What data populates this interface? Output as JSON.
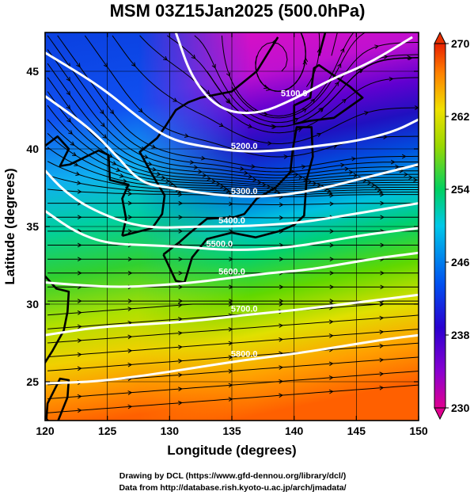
{
  "chart_data": {
    "type": "heatmap",
    "title": "MSM 03Z15Jan2025 (500.0hPa)",
    "xlabel": "Longitude (degrees)",
    "ylabel": "Latitude  (degrees)",
    "xlim": [
      120,
      150
    ],
    "ylim": [
      22.5,
      47.5
    ],
    "xticks": [
      "120",
      "125",
      "130",
      "135",
      "140",
      "145",
      "150"
    ],
    "yticks": [
      "25",
      "30",
      "35",
      "40",
      "45"
    ],
    "colorbar": {
      "min": 230,
      "max": 270,
      "ticks": [
        "230",
        "238",
        "246",
        "254",
        "262",
        "270"
      ],
      "stops": [
        "#e00090",
        "#8a00d0",
        "#2a00d0",
        "#0050f0",
        "#00c8e8",
        "#00d060",
        "#9ad800",
        "#f0e000",
        "#ff8000",
        "#e82000"
      ]
    },
    "height_contours": [
      {
        "label": "5100.0",
        "points": [
          [
            130.5,
            47.5
          ],
          [
            131.8,
            44.5
          ],
          [
            134,
            42.5
          ],
          [
            137,
            42.2
          ],
          [
            140,
            43.2
          ],
          [
            143,
            44.5
          ],
          [
            146,
            45.5
          ],
          [
            149.5,
            47.2
          ]
        ]
      },
      {
        "label": "5200.0",
        "points": [
          [
            120,
            46.2
          ],
          [
            124.5,
            44
          ],
          [
            127.5,
            42
          ],
          [
            130,
            40.6
          ],
          [
            133,
            40.1
          ],
          [
            136,
            39.8
          ],
          [
            139,
            39.9
          ],
          [
            142,
            40.2
          ],
          [
            145,
            40.5
          ],
          [
            148,
            41.1
          ],
          [
            150,
            41.9
          ]
        ]
      },
      {
        "label": "5300.0",
        "points": [
          [
            120,
            43.4
          ],
          [
            123.5,
            41.4
          ],
          [
            125.8,
            39.5
          ],
          [
            127.7,
            37.8
          ],
          [
            130,
            37.5
          ],
          [
            133,
            37.1
          ],
          [
            136,
            36.9
          ],
          [
            139,
            37.0
          ],
          [
            142,
            37.4
          ],
          [
            145,
            38.0
          ],
          [
            148,
            38.6
          ],
          [
            150,
            39.0
          ]
        ]
      },
      {
        "label": "5400.0",
        "points": [
          [
            120,
            38.6
          ],
          [
            121.5,
            37.3
          ],
          [
            123.5,
            36.2
          ],
          [
            126.5,
            35.2
          ],
          [
            129,
            34.9
          ],
          [
            132,
            35.0
          ],
          [
            135,
            35.0
          ],
          [
            138,
            35.1
          ],
          [
            141,
            35.3
          ],
          [
            144,
            35.7
          ],
          [
            147,
            36.1
          ],
          [
            150,
            36.5
          ]
        ]
      },
      {
        "label": "5500.0",
        "points": [
          [
            120,
            36.0
          ],
          [
            122.5,
            34.6
          ],
          [
            125,
            33.9
          ],
          [
            128,
            33.8
          ],
          [
            131,
            33.7
          ],
          [
            134,
            33.5
          ],
          [
            137,
            33.5
          ],
          [
            140,
            33.7
          ],
          [
            143,
            34.1
          ],
          [
            146,
            34.5
          ],
          [
            150,
            34.9
          ]
        ]
      },
      {
        "label": "5600.0",
        "points": [
          [
            120,
            31.4
          ],
          [
            123,
            31.2
          ],
          [
            126,
            31.1
          ],
          [
            129,
            31.2
          ],
          [
            132,
            31.4
          ],
          [
            135,
            31.7
          ],
          [
            138,
            32.0
          ],
          [
            141,
            32.2
          ],
          [
            144,
            32.6
          ],
          [
            147,
            33.0
          ],
          [
            150,
            33.3
          ]
        ]
      },
      {
        "label": "5700.0",
        "points": [
          [
            120,
            28.0
          ],
          [
            124,
            28.5
          ],
          [
            128,
            28.7
          ],
          [
            132,
            28.9
          ],
          [
            136,
            29.3
          ],
          [
            140,
            29.6
          ],
          [
            144,
            30.0
          ],
          [
            147,
            30.3
          ],
          [
            150,
            30.6
          ]
        ]
      },
      {
        "label": "5800.0",
        "points": [
          [
            120,
            24.9
          ],
          [
            124,
            25.0
          ],
          [
            128,
            25.4
          ],
          [
            132,
            25.9
          ],
          [
            136,
            26.4
          ],
          [
            140,
            26.8
          ],
          [
            144,
            27.3
          ],
          [
            147,
            27.7
          ],
          [
            150,
            28.0
          ]
        ]
      }
    ]
  },
  "credits": {
    "line1": "Drawing by DCL (https://www.gfd-dennou.org/library/dcl/)",
    "line2": "Data from http://database.rish.kyoto-u.ac.jp/arch/jmadata/"
  }
}
